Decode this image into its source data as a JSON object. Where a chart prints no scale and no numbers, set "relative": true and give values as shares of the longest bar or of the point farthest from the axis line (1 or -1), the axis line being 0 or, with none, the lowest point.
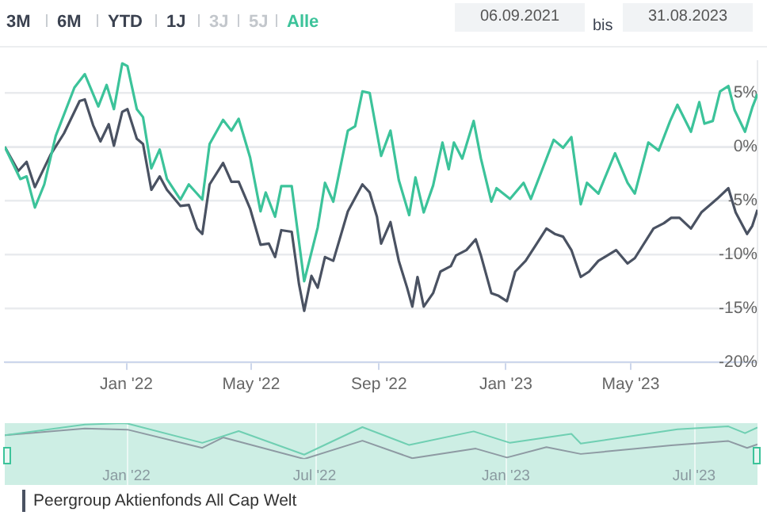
{
  "chart_data": [
    {
      "type": "line",
      "annotations": [
        "3M",
        "6M",
        "YTD",
        "1J",
        "3J",
        "5J",
        "Alle",
        "06.09.2021",
        "bis",
        "31.08.2023"
      ],
      "xlim": [
        "2021-09-06",
        "2023-08-31"
      ],
      "xticks": [
        {
          "value": "2022-01-01",
          "label": "Jan '22"
        },
        {
          "value": "2022-05-01",
          "label": "May '22"
        },
        {
          "value": "2022-09-01",
          "label": "Sep '22"
        },
        {
          "value": "2023-01-01",
          "label": "Jan '23"
        },
        {
          "value": "2023-05-01",
          "label": "May '23"
        }
      ],
      "ylim": [
        -20,
        8
      ],
      "yticks": [
        {
          "value": -20,
          "label": "-20%"
        },
        {
          "value": -15,
          "label": "-15%"
        },
        {
          "value": -10,
          "label": "-10%"
        },
        {
          "value": -5,
          "label": "-5%"
        },
        {
          "value": 0,
          "label": "0%"
        },
        {
          "value": 5,
          "label": "5%"
        }
      ],
      "grid": "y",
      "legend": "bottom",
      "ref_lines": [
        {
          "axis": "y",
          "value": 0,
          "color": "#c8ccd2"
        }
      ],
      "series": [
        {
          "color": "#3cc39a",
          "x": [
            "2021-09-06",
            "2021-09-21",
            "2021-09-27",
            "2021-10-05",
            "2021-10-14",
            "2021-10-25",
            "2021-11-12",
            "2021-11-22",
            "2021-12-05",
            "2021-12-13",
            "2021-12-20",
            "2021-12-28",
            "2022-01-02",
            "2022-01-11",
            "2022-01-17",
            "2022-01-25",
            "2022-02-02",
            "2022-02-09",
            "2022-02-22",
            "2022-03-02",
            "2022-03-15",
            "2022-03-22",
            "2022-04-04",
            "2022-04-12",
            "2022-04-19",
            "2022-04-30",
            "2022-05-10",
            "2022-05-15",
            "2022-05-24",
            "2022-05-30",
            "2022-06-09",
            "2022-06-21",
            "2022-07-04",
            "2022-07-11",
            "2022-07-19",
            "2022-08-02",
            "2022-08-09",
            "2022-08-16",
            "2022-08-23",
            "2022-09-03",
            "2022-09-12",
            "2022-09-20",
            "2022-09-30",
            "2022-10-06",
            "2022-10-14",
            "2022-10-23",
            "2022-11-01",
            "2022-11-07",
            "2022-11-12",
            "2022-11-20",
            "2022-12-01",
            "2022-12-08",
            "2022-12-18",
            "2022-12-23",
            "2023-01-05",
            "2023-01-18",
            "2023-01-25",
            "2023-02-05",
            "2023-02-16",
            "2023-02-25",
            "2023-03-05",
            "2023-03-14",
            "2023-03-20",
            "2023-03-31",
            "2023-04-16",
            "2023-04-28",
            "2023-05-05",
            "2023-05-18",
            "2023-05-28",
            "2023-06-08",
            "2023-06-15",
            "2023-06-28",
            "2023-07-06",
            "2023-07-11",
            "2023-07-19",
            "2023-07-26",
            "2023-08-03",
            "2023-08-09",
            "2023-08-19",
            "2023-08-26",
            "2023-08-31"
          ],
          "values": [
            0,
            -3,
            -2.75,
            -5.65,
            -3.5,
            1,
            5.5,
            6.75,
            3.75,
            5.75,
            3.5,
            7.75,
            7.5,
            3.5,
            2.75,
            -2,
            -0.25,
            -3,
            -4.9,
            -3.5,
            -4.9,
            0.25,
            2.5,
            1.5,
            2.6,
            -1,
            -6,
            -4.25,
            -6.5,
            -3.65,
            -3.65,
            -12.5,
            -7.5,
            -3.35,
            -5.1,
            1.5,
            1.9,
            5.15,
            5,
            -0.85,
            1.5,
            -3.1,
            -6.35,
            -2.85,
            -6.1,
            -3.6,
            0.4,
            -2.1,
            0.4,
            -1.1,
            2.4,
            -1.1,
            -5.1,
            -3.85,
            -4.85,
            -3.35,
            -4.85,
            -2.1,
            0.65,
            -0.1,
            0.9,
            -5.35,
            -3.35,
            -4.35,
            -0.6,
            -3.35,
            -4.35,
            0.4,
            -0.35,
            2.4,
            3.9,
            1.4,
            4.15,
            2.15,
            2.4,
            5.15,
            5.65,
            3.4,
            1.4,
            3.65,
            4.9
          ]
        },
        {
          "name": "Peergroup Aktienfonds All Cap Welt",
          "color": "#4a5262",
          "x": [
            "2021-09-06",
            "2021-09-19",
            "2021-09-27",
            "2021-10-05",
            "2021-10-20",
            "2021-11-02",
            "2021-11-17",
            "2021-11-22",
            "2021-11-30",
            "2021-12-07",
            "2021-12-15",
            "2021-12-20",
            "2021-12-28",
            "2022-01-02",
            "2022-01-11",
            "2022-01-17",
            "2022-01-25",
            "2022-02-02",
            "2022-02-09",
            "2022-02-22",
            "2022-03-02",
            "2022-03-10",
            "2022-03-15",
            "2022-03-22",
            "2022-04-04",
            "2022-04-12",
            "2022-04-19",
            "2022-04-30",
            "2022-05-10",
            "2022-05-18",
            "2022-05-24",
            "2022-05-30",
            "2022-06-09",
            "2022-06-16",
            "2022-06-21",
            "2022-06-28",
            "2022-07-04",
            "2022-07-11",
            "2022-07-19",
            "2022-08-02",
            "2022-08-16",
            "2022-08-23",
            "2022-08-30",
            "2022-09-03",
            "2022-09-12",
            "2022-09-20",
            "2022-09-28",
            "2022-10-03",
            "2022-10-08",
            "2022-10-14",
            "2022-10-23",
            "2022-10-30",
            "2022-11-09",
            "2022-11-14",
            "2022-11-24",
            "2022-12-03",
            "2022-12-08",
            "2022-12-18",
            "2022-12-25",
            "2023-01-02",
            "2023-01-10",
            "2023-01-20",
            "2023-01-30",
            "2023-02-09",
            "2023-02-17",
            "2023-02-25",
            "2023-03-05",
            "2023-03-14",
            "2023-03-22",
            "2023-03-31",
            "2023-04-17",
            "2023-04-28",
            "2023-05-05",
            "2023-05-23",
            "2023-06-02",
            "2023-06-09",
            "2023-06-17",
            "2023-06-28",
            "2023-07-08",
            "2023-07-23",
            "2023-08-03",
            "2023-08-10",
            "2023-08-21",
            "2023-08-26",
            "2023-08-31"
          ],
          "values": [
            0,
            -2.25,
            -1.4,
            -3.75,
            -0.75,
            1.25,
            4.25,
            4.4,
            2,
            0.5,
            2.1,
            0.1,
            3.25,
            3.5,
            0.75,
            0.25,
            -4,
            -2.75,
            -4,
            -5.5,
            -5.4,
            -7.6,
            -8.1,
            -3.5,
            -1.5,
            -3.25,
            -3.25,
            -5.75,
            -9.1,
            -9,
            -10.25,
            -7.75,
            -7.9,
            -12.75,
            -15.25,
            -12,
            -13.1,
            -10.25,
            -10.6,
            -6,
            -3.5,
            -4.25,
            -6.5,
            -9,
            -7,
            -10.6,
            -13.1,
            -14.85,
            -12.1,
            -14.85,
            -13.6,
            -11.6,
            -11.1,
            -10.1,
            -9.6,
            -8.6,
            -10.1,
            -13.6,
            -13.85,
            -14.35,
            -11.6,
            -10.6,
            -9.1,
            -7.6,
            -8.1,
            -8.35,
            -9.6,
            -12.1,
            -11.6,
            -10.6,
            -9.6,
            -10.85,
            -10.35,
            -7.6,
            -7.1,
            -6.6,
            -6.6,
            -7.6,
            -6.1,
            -4.85,
            -3.85,
            -6.1,
            -8.1,
            -7.35,
            -5.85
          ]
        }
      ]
    },
    {
      "type": "line",
      "relative": true,
      "tick_labels": "x",
      "grid": "x",
      "xlim": [
        "2021-09-06",
        "2023-08-31"
      ],
      "xticks": [
        {
          "value": "2022-01-01",
          "label": "Jan '22"
        },
        {
          "value": "2022-07-01",
          "label": "Jul '22"
        },
        {
          "value": "2023-01-01",
          "label": "Jan '23"
        },
        {
          "value": "2023-07-01",
          "label": "Jul '23"
        }
      ],
      "bands": [
        {
          "axis": "x",
          "from": "2021-09-06",
          "to": "2023-08-31",
          "color": "#cdeee4"
        }
      ],
      "series": [
        {
          "color": "#6fcfb2",
          "x": [
            "2021-09-06",
            "2021-11-22",
            "2021-12-28",
            "2022-01-02",
            "2022-03-15",
            "2022-04-19",
            "2022-06-21",
            "2022-08-16",
            "2022-09-30",
            "2022-12-01",
            "2023-01-05",
            "2023-03-05",
            "2023-03-14",
            "2023-06-15",
            "2023-08-03",
            "2023-08-19",
            "2023-08-31"
          ],
          "values": [
            0.66,
            0.96,
            1,
            0.99,
            0.45,
            0.78,
            0.12,
            0.89,
            0.39,
            0.77,
            0.45,
            0.7,
            0.43,
            0.83,
            0.91,
            0.72,
            0.88
          ]
        },
        {
          "color": "#8e9aa3",
          "x": [
            "2021-09-06",
            "2021-11-22",
            "2022-01-02",
            "2022-03-15",
            "2022-04-04",
            "2022-06-21",
            "2022-08-16",
            "2022-10-03",
            "2022-12-03",
            "2023-01-02",
            "2023-02-09",
            "2023-03-14",
            "2023-06-09",
            "2023-08-03",
            "2023-08-21",
            "2023-08-31"
          ],
          "values": [
            0.66,
            0.85,
            0.82,
            0.31,
            0.6,
            0,
            0.51,
            0.02,
            0.29,
            0.04,
            0.33,
            0.14,
            0.38,
            0.5,
            0.31,
            0.41
          ]
        }
      ]
    }
  ]
}
